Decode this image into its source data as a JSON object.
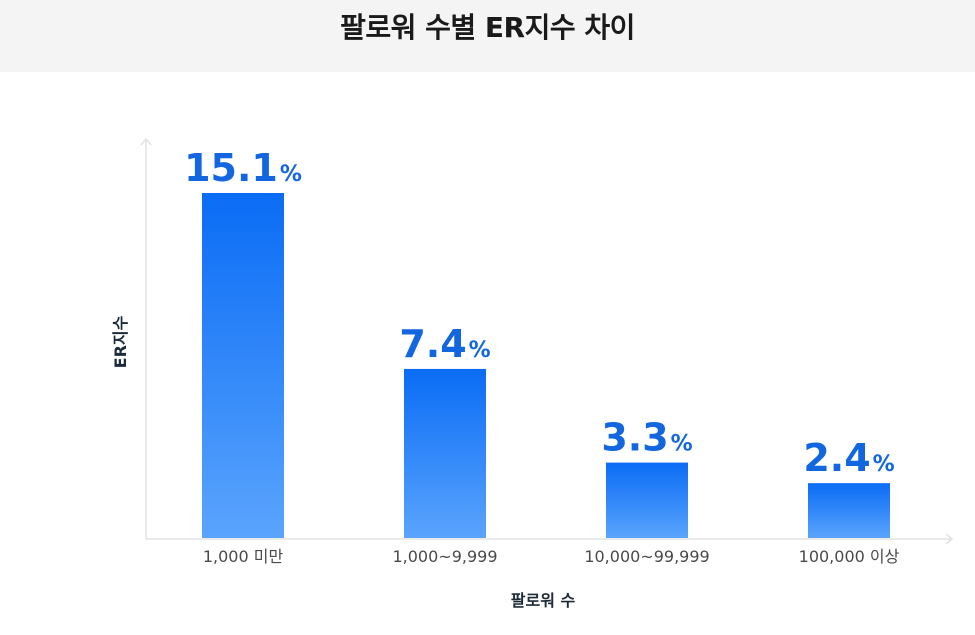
{
  "chart_data": {
    "type": "bar",
    "title": "팔로워 수별 ER지수 차이",
    "xlabel": "팔로워 수",
    "ylabel": "ER지수",
    "categories": [
      "1,000 미만",
      "1,000~9,999",
      "10,000~99,999",
      "100,000 이상"
    ],
    "values": [
      15.1,
      7.4,
      3.3,
      2.4
    ],
    "value_labels": [
      "15.1",
      "7.4",
      "3.3",
      "2.4"
    ],
    "value_unit": "%",
    "ylim": [
      0,
      17
    ],
    "grid": false,
    "colors": {
      "bar_top": "#0a6cf5",
      "bar_bottom": "#5aa4fd",
      "value_text": "#1266e0",
      "title_bg": "#f4f4f4"
    }
  }
}
